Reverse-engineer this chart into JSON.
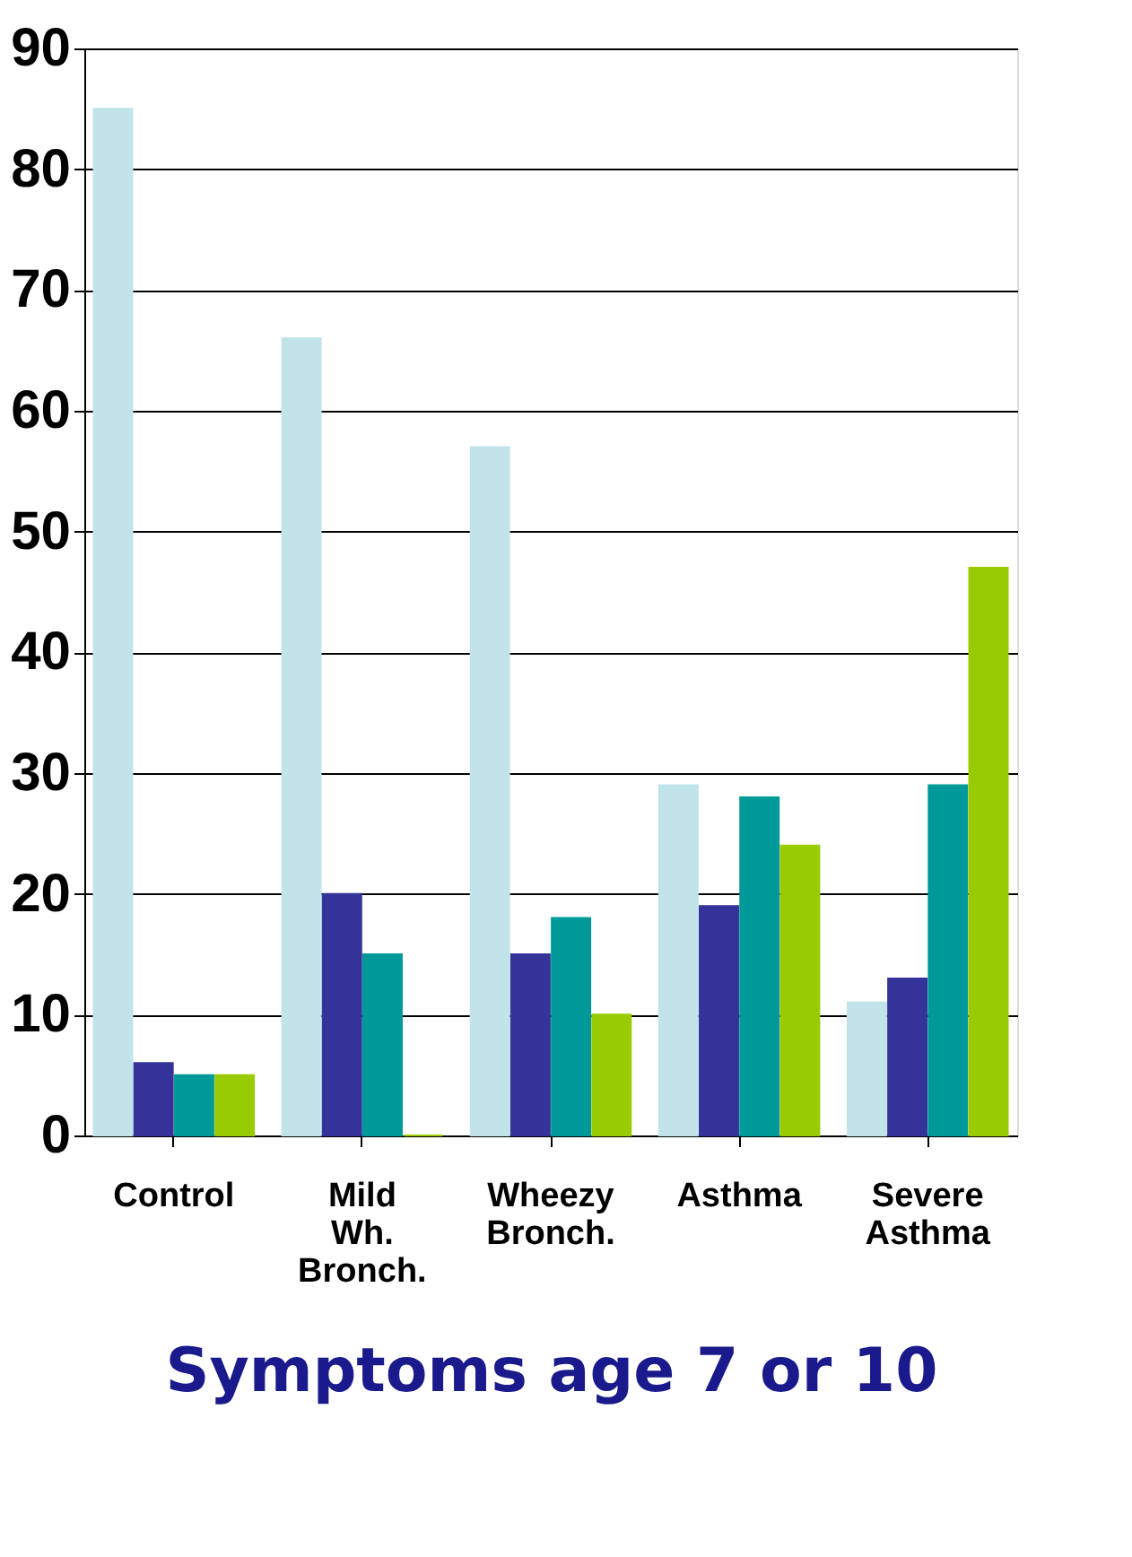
{
  "chart_data": {
    "type": "bar",
    "xlabel": "Symptoms age 7 or 10",
    "categories": [
      "Control",
      "Mild Wh. Bronch.",
      "Wheezy Bronch.",
      "Asthma",
      "Severe Asthma"
    ],
    "series": [
      {
        "color": "#c0e4ea",
        "values": [
          85,
          66,
          57,
          29,
          11
        ]
      },
      {
        "color": "#333399",
        "values": [
          6,
          20,
          15,
          19,
          13
        ]
      },
      {
        "color": "#009999",
        "values": [
          5,
          15,
          18,
          28,
          29
        ]
      },
      {
        "color": "#99cc00",
        "values": [
          5,
          0,
          10,
          24,
          47
        ]
      }
    ],
    "ylim": [
      0,
      90
    ],
    "yticks": [
      0,
      10,
      20,
      30,
      40,
      50,
      60,
      70,
      80,
      90
    ],
    "grid": "y",
    "legend": false
  }
}
